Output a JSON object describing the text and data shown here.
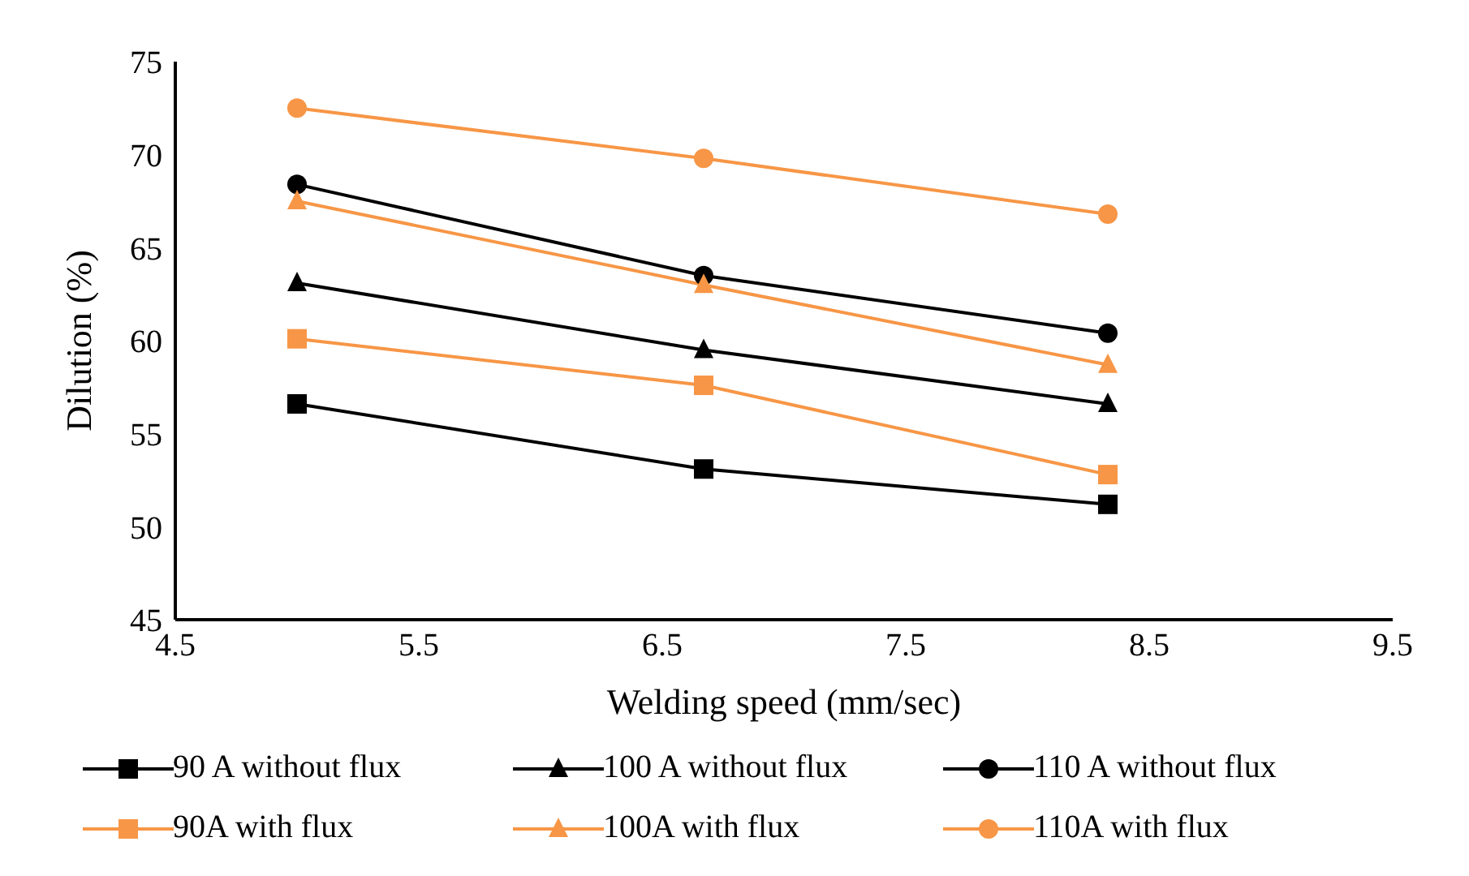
{
  "chart_data": {
    "type": "line",
    "xlabel": "Welding speed (mm/sec)",
    "ylabel": "Dilution (%)",
    "xlim": [
      4.5,
      9.5
    ],
    "xticks": [
      4.5,
      5.5,
      6.5,
      7.5,
      8.5,
      9.5
    ],
    "ylim": [
      45,
      75
    ],
    "yticks": [
      45,
      50,
      55,
      60,
      65,
      70,
      75
    ],
    "grid": false,
    "legend": "bottom",
    "x": [
      5,
      6.67,
      8.33
    ],
    "series": [
      {
        "name": "90 A without flux",
        "color": "#000000",
        "marker": "square",
        "values": [
          56.6,
          53.1,
          51.2
        ]
      },
      {
        "name": "100 A without flux",
        "color": "#000000",
        "marker": "triangle",
        "values": [
          63.1,
          59.5,
          56.6
        ]
      },
      {
        "name": "110 A without flux",
        "color": "#000000",
        "marker": "circle",
        "values": [
          68.4,
          63.5,
          60.4
        ]
      },
      {
        "name": "90A with flux",
        "color": "#f79646",
        "marker": "square",
        "values": [
          60.1,
          57.6,
          52.8
        ]
      },
      {
        "name": "100A with flux",
        "color": "#f79646",
        "marker": "triangle",
        "values": [
          67.5,
          63.0,
          58.7
        ]
      },
      {
        "name": "110A with flux",
        "color": "#f79646",
        "marker": "circle",
        "values": [
          72.5,
          69.8,
          66.8
        ]
      }
    ]
  }
}
